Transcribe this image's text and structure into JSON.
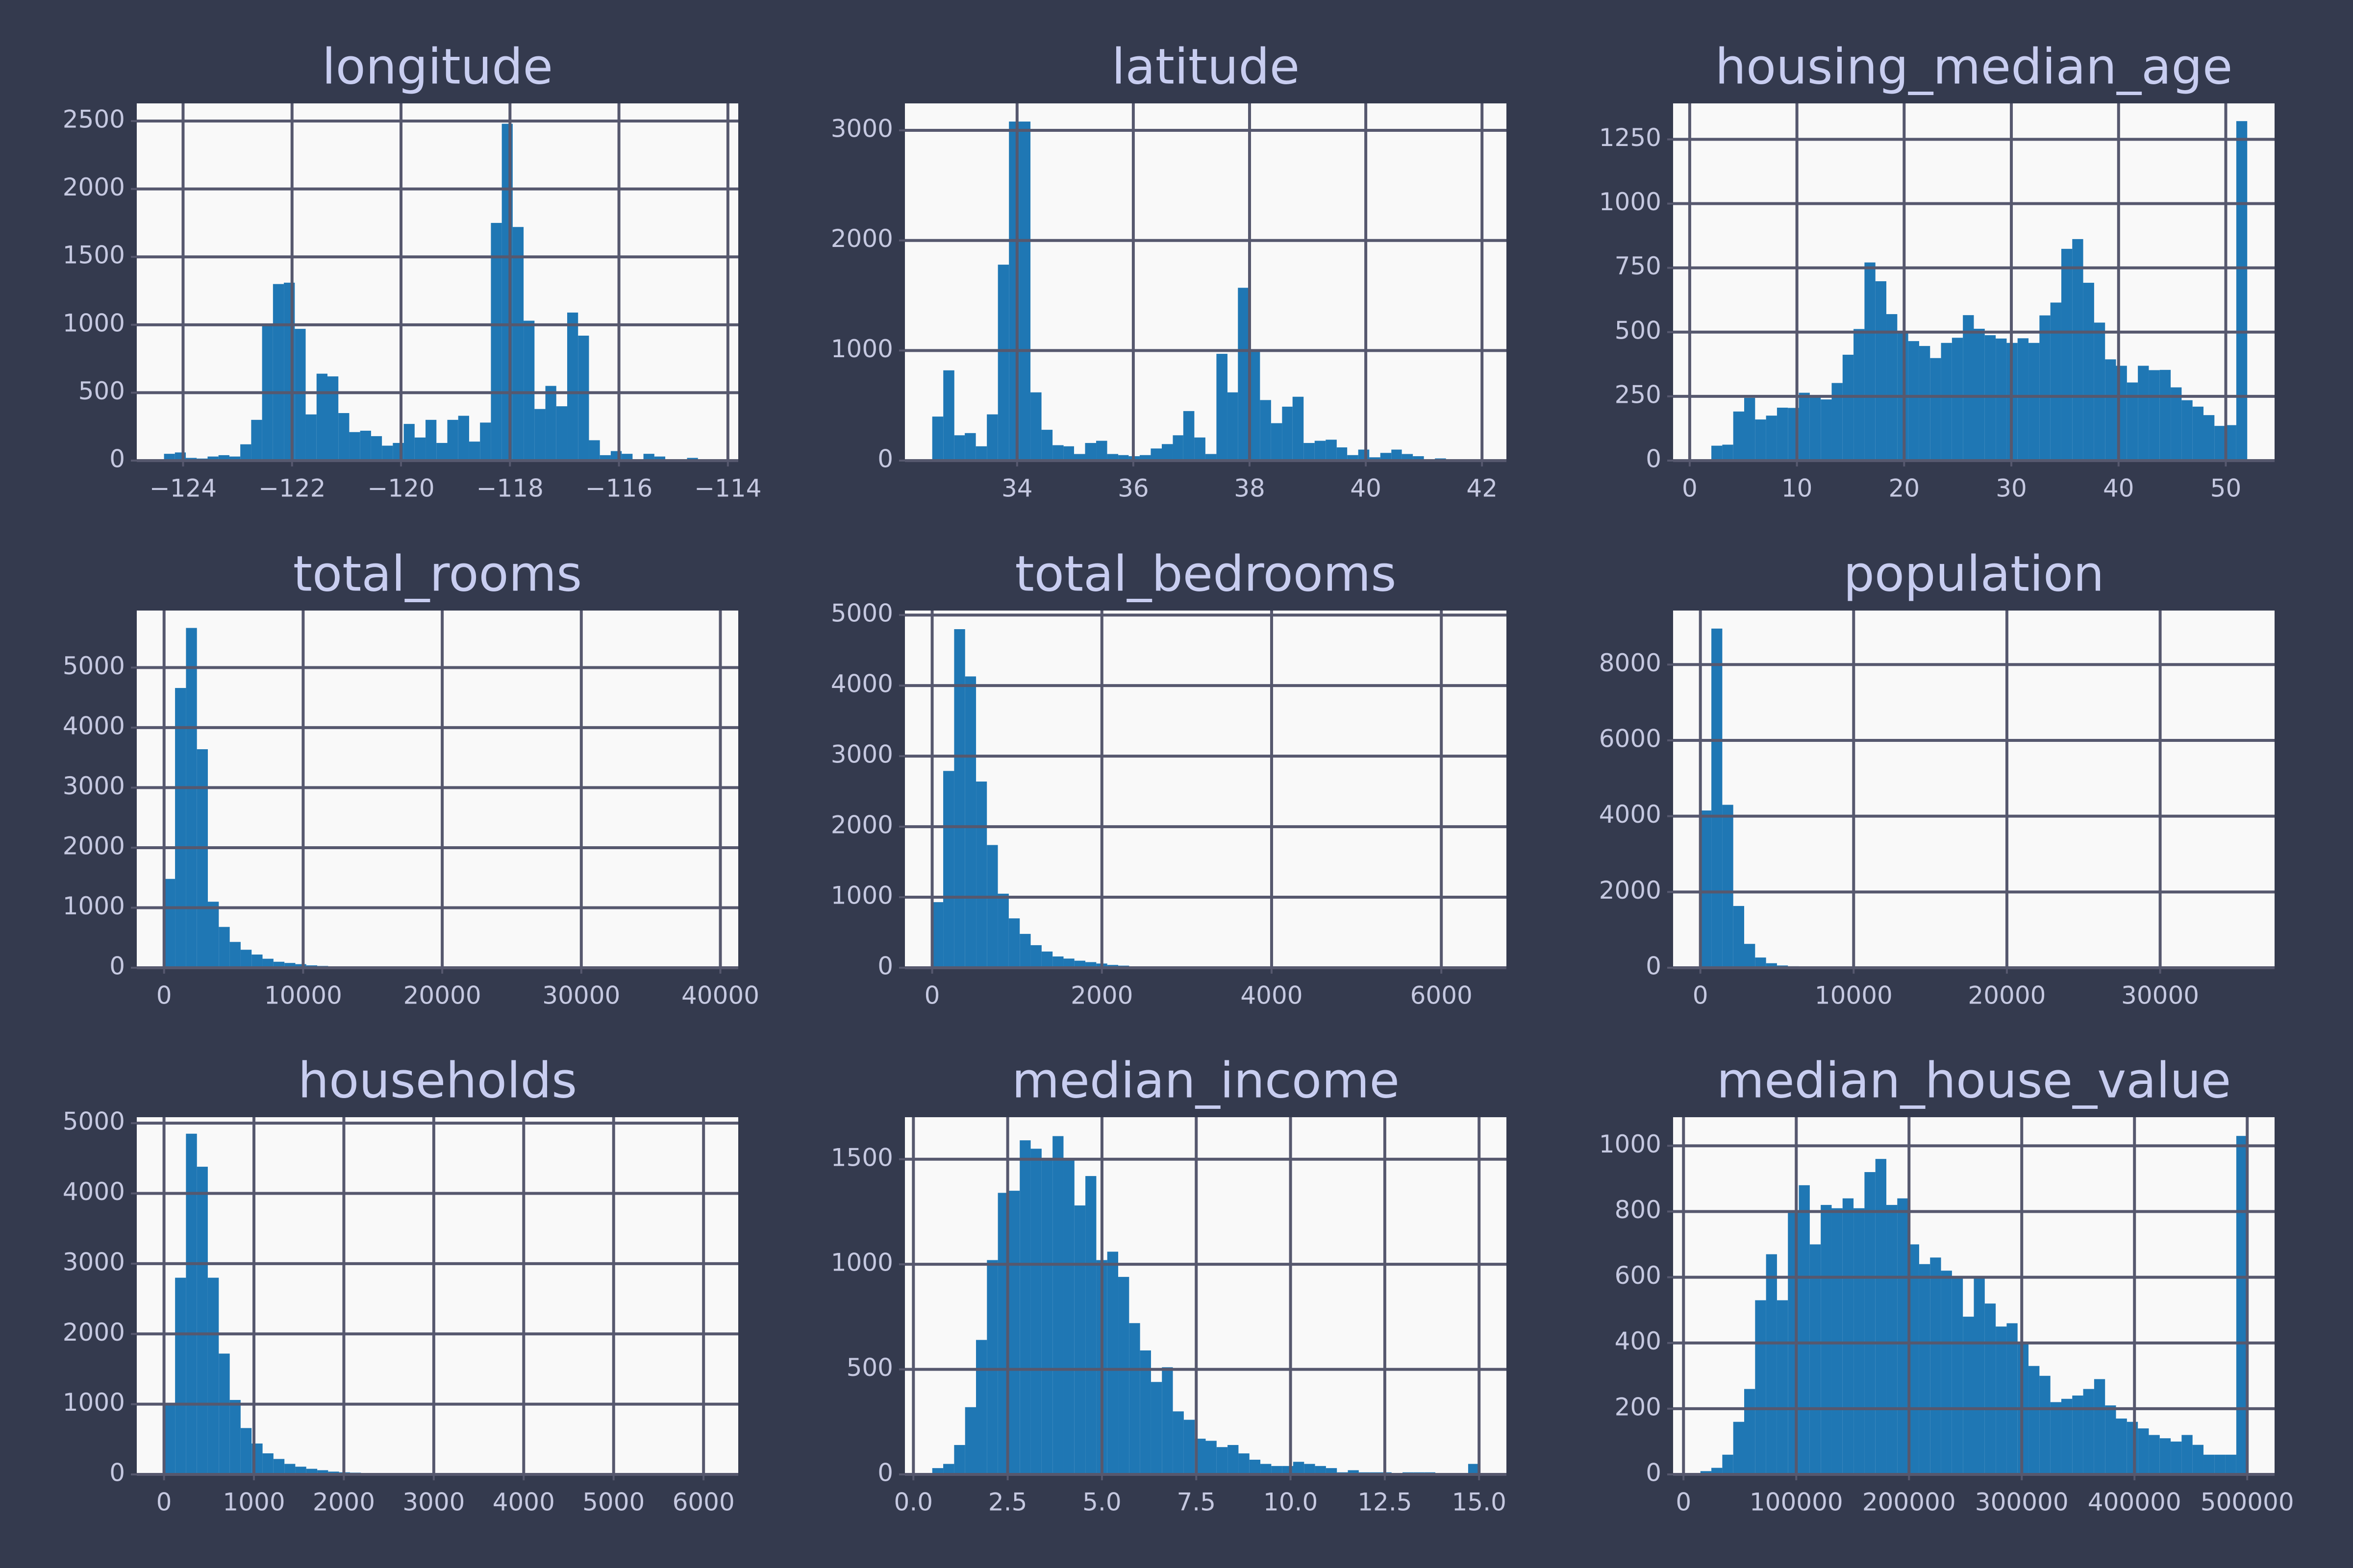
{
  "chart_data": [
    {
      "type": "histogram",
      "title": "longitude",
      "color": "#1f77b4",
      "grid": true,
      "bins": [
        -124.35,
        -124.15,
        -123.95,
        -123.75,
        -123.55,
        -123.35,
        -123.15,
        -122.95,
        -122.75,
        -122.55,
        -122.35,
        -122.15,
        -121.95,
        -121.75,
        -121.55,
        -121.35,
        -121.15,
        -120.95,
        -120.75,
        -120.55,
        -120.35,
        -120.15,
        -119.95,
        -119.75,
        -119.55,
        -119.35,
        -119.15,
        -118.95,
        -118.75,
        -118.55,
        -118.35,
        -118.15,
        -117.95,
        -117.75,
        -117.55,
        -117.35,
        -117.15,
        -116.95,
        -116.75,
        -116.55,
        -116.35,
        -116.15,
        -115.95,
        -115.75,
        -115.55,
        -115.35,
        -115.15,
        -114.95,
        -114.75,
        -114.55,
        -114.35
      ],
      "values": [
        50,
        60,
        20,
        15,
        30,
        40,
        30,
        120,
        300,
        1000,
        1300,
        1310,
        970,
        340,
        640,
        620,
        350,
        210,
        220,
        180,
        110,
        130,
        270,
        170,
        300,
        130,
        300,
        330,
        140,
        280,
        1750,
        2480,
        1720,
        1030,
        380,
        550,
        400,
        1090,
        920,
        150,
        40,
        70,
        50,
        10,
        50,
        30,
        10,
        10,
        20,
        10
      ],
      "xlim": [
        -124.85,
        -113.81
      ],
      "ylim": [
        0,
        2630
      ],
      "xticks": [
        {
          "value": -124,
          "label": "−124"
        },
        {
          "value": -122,
          "label": "−122"
        },
        {
          "value": -120,
          "label": "−120"
        },
        {
          "value": -118,
          "label": "−118"
        },
        {
          "value": -116,
          "label": "−116"
        },
        {
          "value": -114,
          "label": "−114"
        }
      ],
      "yticks": [
        0,
        500,
        1000,
        1500,
        2000,
        2500
      ]
    },
    {
      "type": "histogram",
      "title": "latitude",
      "color": "#1f77b4",
      "grid": true,
      "bins": [
        32.54,
        32.73,
        32.92,
        33.1,
        33.29,
        33.48,
        33.67,
        33.86,
        34.04,
        34.23,
        34.42,
        34.61,
        34.8,
        34.98,
        35.17,
        35.36,
        35.55,
        35.74,
        35.92,
        36.11,
        36.3,
        36.49,
        36.68,
        36.86,
        37.05,
        37.24,
        37.43,
        37.62,
        37.8,
        37.99,
        38.18,
        38.37,
        38.56,
        38.74,
        38.93,
        39.12,
        39.31,
        39.5,
        39.68,
        39.87,
        40.06,
        40.25,
        40.44,
        40.62,
        40.81,
        41.0,
        41.19,
        41.38,
        41.56,
        41.75,
        41.94
      ],
      "values": [
        400,
        820,
        230,
        250,
        130,
        420,
        1780,
        3080,
        3080,
        620,
        280,
        140,
        130,
        60,
        160,
        180,
        60,
        50,
        40,
        50,
        110,
        150,
        230,
        450,
        210,
        60,
        970,
        620,
        1570,
        990,
        550,
        340,
        490,
        580,
        160,
        180,
        190,
        120,
        50,
        100,
        30,
        70,
        100,
        60,
        40,
        10,
        20,
        10,
        10,
        10
      ],
      "xlim": [
        32.07,
        42.42
      ],
      "ylim": [
        0,
        3245
      ],
      "xticks": [
        34,
        36,
        38,
        40,
        42
      ],
      "yticks": [
        0,
        1000,
        2000,
        3000
      ]
    },
    {
      "type": "histogram",
      "title": "housing_median_age",
      "color": "#1f77b4",
      "grid": true,
      "bins": [
        1,
        2.02,
        3.04,
        4.06,
        5.08,
        6.1,
        7.12,
        8.14,
        9.16,
        10.18,
        11.2,
        12.22,
        13.24,
        14.26,
        15.28,
        16.3,
        17.32,
        18.34,
        19.36,
        20.38,
        21.4,
        22.42,
        23.44,
        24.46,
        25.48,
        26.5,
        27.52,
        28.54,
        29.56,
        30.58,
        31.6,
        32.62,
        33.64,
        34.66,
        35.68,
        36.7,
        37.72,
        38.74,
        39.76,
        40.78,
        41.8,
        42.82,
        43.84,
        44.86,
        45.88,
        46.9,
        47.92,
        48.94,
        49.96,
        50.98,
        52
      ],
      "values": [
        4,
        58,
        62,
        191,
        244,
        160,
        175,
        206,
        205,
        264,
        254,
        238,
        302,
        412,
        512,
        771,
        698,
        570,
        502,
        465,
        446,
        399,
        458,
        478,
        566,
        513,
        488,
        475,
        458,
        476,
        458,
        565,
        615,
        824,
        862,
        692,
        537,
        394,
        369,
        304,
        369,
        352,
        353,
        285,
        235,
        210,
        177,
        135,
        138,
        1321
      ],
      "xlim": [
        -1.55,
        54.55
      ],
      "ylim": [
        0,
        1390
      ],
      "xticks": [
        0,
        10,
        20,
        30,
        40,
        50
      ],
      "yticks": [
        0,
        250,
        500,
        750,
        1000,
        1250
      ]
    },
    {
      "type": "histogram",
      "title": "total_rooms",
      "color": "#1f77b4",
      "grid": true,
      "bins": [
        2,
        788,
        1575,
        2361,
        3147,
        3934,
        4720,
        5506,
        6293,
        7079,
        7865,
        8652,
        9438,
        10224,
        11011,
        11797,
        12583,
        13370,
        14156,
        14942,
        15729,
        16515,
        17301,
        18088,
        18874,
        19660,
        20447,
        21233,
        22019,
        22806,
        23592,
        24378,
        25165,
        25951,
        26737,
        27524,
        28310,
        29096,
        29883,
        30669,
        31455,
        32242,
        33028,
        33814,
        34601,
        35387,
        36173,
        36960,
        37746,
        38532,
        39320
      ],
      "values": [
        1480,
        4660,
        5660,
        3640,
        1100,
        680,
        430,
        300,
        220,
        150,
        100,
        80,
        60,
        40,
        30,
        20,
        15,
        10,
        8,
        6,
        5,
        4,
        3,
        3,
        2,
        2,
        1,
        2,
        1,
        1,
        1,
        1,
        1,
        0,
        1,
        0,
        0,
        1,
        0,
        1,
        0,
        0,
        0,
        0,
        0,
        0,
        0,
        0,
        0,
        1
      ],
      "xlim": [
        -1964,
        41286
      ],
      "ylim": [
        0,
        5950
      ],
      "xticks": [
        0,
        10000,
        20000,
        30000,
        40000
      ],
      "yticks": [
        0,
        1000,
        2000,
        3000,
        4000,
        5000
      ]
    },
    {
      "type": "histogram",
      "title": "total_bedrooms",
      "color": "#1f77b4",
      "grid": true,
      "bins": [
        1,
        130,
        259,
        388,
        517,
        645,
        774,
        903,
        1032,
        1161,
        1290,
        1419,
        1548,
        1676,
        1805,
        1934,
        2063,
        2192,
        2321,
        2450,
        2579,
        2708,
        2836,
        2965,
        3094,
        3223,
        3352,
        3481,
        3610,
        3739,
        3867,
        3996,
        4125,
        4254,
        4383,
        4512,
        4641,
        4770,
        4898,
        5027,
        5156,
        5285,
        5414,
        5543,
        5672,
        5801,
        5929,
        6058,
        6187,
        6316,
        6445
      ],
      "values": [
        930,
        2790,
        4800,
        4130,
        2640,
        1740,
        1050,
        700,
        480,
        320,
        230,
        160,
        130,
        100,
        80,
        60,
        40,
        30,
        20,
        20,
        15,
        10,
        8,
        6,
        5,
        4,
        3,
        2,
        2,
        2,
        1,
        1,
        1,
        1,
        0,
        1,
        0,
        1,
        0,
        0,
        0,
        0,
        0,
        0,
        0,
        1,
        0,
        0,
        0,
        1
      ],
      "xlim": [
        -321,
        6767
      ],
      "ylim": [
        0,
        5064
      ],
      "xticks": [
        0,
        2000,
        4000,
        6000
      ],
      "yticks": [
        0,
        1000,
        2000,
        3000,
        4000,
        5000
      ]
    },
    {
      "type": "histogram",
      "title": "population",
      "color": "#1f77b4",
      "grid": true,
      "bins": [
        3,
        717,
        1430,
        2144,
        2857,
        3571,
        4285,
        4998,
        5712,
        6425,
        7139,
        7852,
        8566,
        9280,
        9993,
        10707,
        11420,
        12134,
        12848,
        13561,
        14275,
        14988,
        15702,
        16415,
        17129,
        17843,
        18556,
        19270,
        19983,
        20697,
        21410,
        22124,
        22838,
        23551,
        24265,
        24978,
        25692,
        26406,
        27119,
        27833,
        28546,
        29260,
        29973,
        30687,
        31401,
        32114,
        32828,
        33541,
        34255,
        34968,
        35682
      ],
      "values": [
        4150,
        8950,
        4300,
        1630,
        630,
        270,
        120,
        60,
        40,
        20,
        15,
        10,
        5,
        5,
        3,
        2,
        2,
        1,
        1,
        1,
        0,
        0,
        1,
        0,
        0,
        1,
        0,
        0,
        0,
        0,
        0,
        0,
        0,
        0,
        0,
        0,
        0,
        0,
        0,
        0,
        0,
        0,
        0,
        0,
        0,
        0,
        0,
        0,
        0,
        1
      ],
      "xlim": [
        -1781,
        37466
      ],
      "ylim": [
        0,
        9426
      ],
      "xticks": [
        0,
        10000,
        20000,
        30000
      ],
      "yticks": [
        0,
        2000,
        4000,
        6000,
        8000
      ]
    },
    {
      "type": "histogram",
      "title": "households",
      "color": "#1f77b4",
      "grid": true,
      "bins": [
        1,
        123,
        244,
        366,
        487,
        609,
        731,
        852,
        974,
        1096,
        1217,
        1339,
        1460,
        1582,
        1704,
        1825,
        1947,
        2068,
        2190,
        2312,
        2433,
        2555,
        2677,
        2798,
        2920,
        3041,
        3163,
        3285,
        3406,
        3528,
        3650,
        3771,
        3893,
        4014,
        4136,
        4258,
        4379,
        4501,
        4622,
        4744,
        4866,
        4987,
        5109,
        5231,
        5352,
        5474,
        5595,
        5717,
        5839,
        5960,
        6082
      ],
      "values": [
        980,
        2800,
        4850,
        4380,
        2800,
        1720,
        1060,
        660,
        440,
        300,
        220,
        150,
        110,
        80,
        60,
        40,
        30,
        25,
        20,
        15,
        10,
        8,
        6,
        5,
        4,
        3,
        3,
        2,
        2,
        1,
        1,
        1,
        1,
        1,
        0,
        1,
        0,
        0,
        1,
        0,
        0,
        0,
        0,
        0,
        0,
        1,
        0,
        0,
        0,
        1
      ],
      "xlim": [
        -303,
        6386
      ],
      "ylim": [
        0,
        5085
      ],
      "xticks": [
        0,
        1000,
        2000,
        3000,
        4000,
        5000,
        6000
      ],
      "yticks": [
        0,
        1000,
        2000,
        3000,
        4000,
        5000
      ]
    },
    {
      "type": "histogram",
      "title": "median_income",
      "color": "#1f77b4",
      "grid": true,
      "bins": [
        0.5,
        0.79,
        1.08,
        1.37,
        1.66,
        1.95,
        2.24,
        2.53,
        2.82,
        3.11,
        3.4,
        3.69,
        3.98,
        4.27,
        4.56,
        4.85,
        5.14,
        5.43,
        5.72,
        6.01,
        6.3,
        6.59,
        6.88,
        7.17,
        7.46,
        7.75,
        8.04,
        8.33,
        8.62,
        8.91,
        9.2,
        9.49,
        9.78,
        10.07,
        10.36,
        10.65,
        10.94,
        11.23,
        11.52,
        11.81,
        12.1,
        12.39,
        12.68,
        12.97,
        13.26,
        13.55,
        13.84,
        14.13,
        14.42,
        14.71,
        15.0
      ],
      "values": [
        30,
        50,
        140,
        320,
        640,
        1020,
        1340,
        1350,
        1590,
        1550,
        1500,
        1610,
        1500,
        1280,
        1420,
        1020,
        1060,
        940,
        720,
        590,
        440,
        510,
        300,
        260,
        170,
        160,
        130,
        140,
        100,
        70,
        50,
        40,
        40,
        60,
        50,
        40,
        30,
        10,
        20,
        10,
        10,
        10,
        0,
        10,
        10,
        10,
        0,
        0,
        0,
        50
      ],
      "xlim": [
        -0.225,
        15.725
      ],
      "ylim": [
        0,
        1700
      ],
      "xticks": [
        {
          "value": 0,
          "label": "0.0"
        },
        2.5,
        {
          "value": 5,
          "label": "5.0"
        },
        7.5,
        {
          "value": 10,
          "label": "10.0"
        },
        12.5,
        {
          "value": 15,
          "label": "15.0"
        }
      ],
      "yticks": [
        0,
        500,
        1000,
        1500
      ]
    },
    {
      "type": "histogram",
      "title": "median_house_value",
      "color": "#1f77b4",
      "grid": true,
      "bins": [
        14999,
        24699,
        34399,
        44099,
        53799,
        63499,
        73199,
        82899,
        92599,
        102299,
        111999,
        121699,
        131399,
        141099,
        150799,
        160499,
        170199,
        179899,
        189599,
        199299,
        208999,
        218699,
        228399,
        238099,
        247799,
        257499,
        267199,
        276899,
        286599,
        296299,
        305999,
        315699,
        325399,
        335099,
        344799,
        354499,
        364199,
        373899,
        383599,
        393299,
        402999,
        412699,
        422399,
        432099,
        441799,
        451499,
        461199,
        470899,
        480599,
        490299,
        500001
      ],
      "values": [
        10,
        20,
        60,
        160,
        260,
        530,
        670,
        530,
        800,
        880,
        700,
        820,
        810,
        840,
        810,
        920,
        960,
        820,
        840,
        700,
        640,
        660,
        620,
        600,
        480,
        600,
        520,
        450,
        460,
        400,
        330,
        300,
        220,
        230,
        240,
        260,
        290,
        210,
        170,
        160,
        140,
        120,
        110,
        100,
        120,
        90,
        60,
        60,
        60,
        1030
      ],
      "xlim": [
        -9251,
        524251
      ],
      "ylim": [
        0,
        1087
      ],
      "xticks": [
        0,
        100000,
        200000,
        300000,
        400000,
        500000
      ],
      "yticks": [
        0,
        200,
        400,
        600,
        800,
        1000
      ]
    }
  ]
}
